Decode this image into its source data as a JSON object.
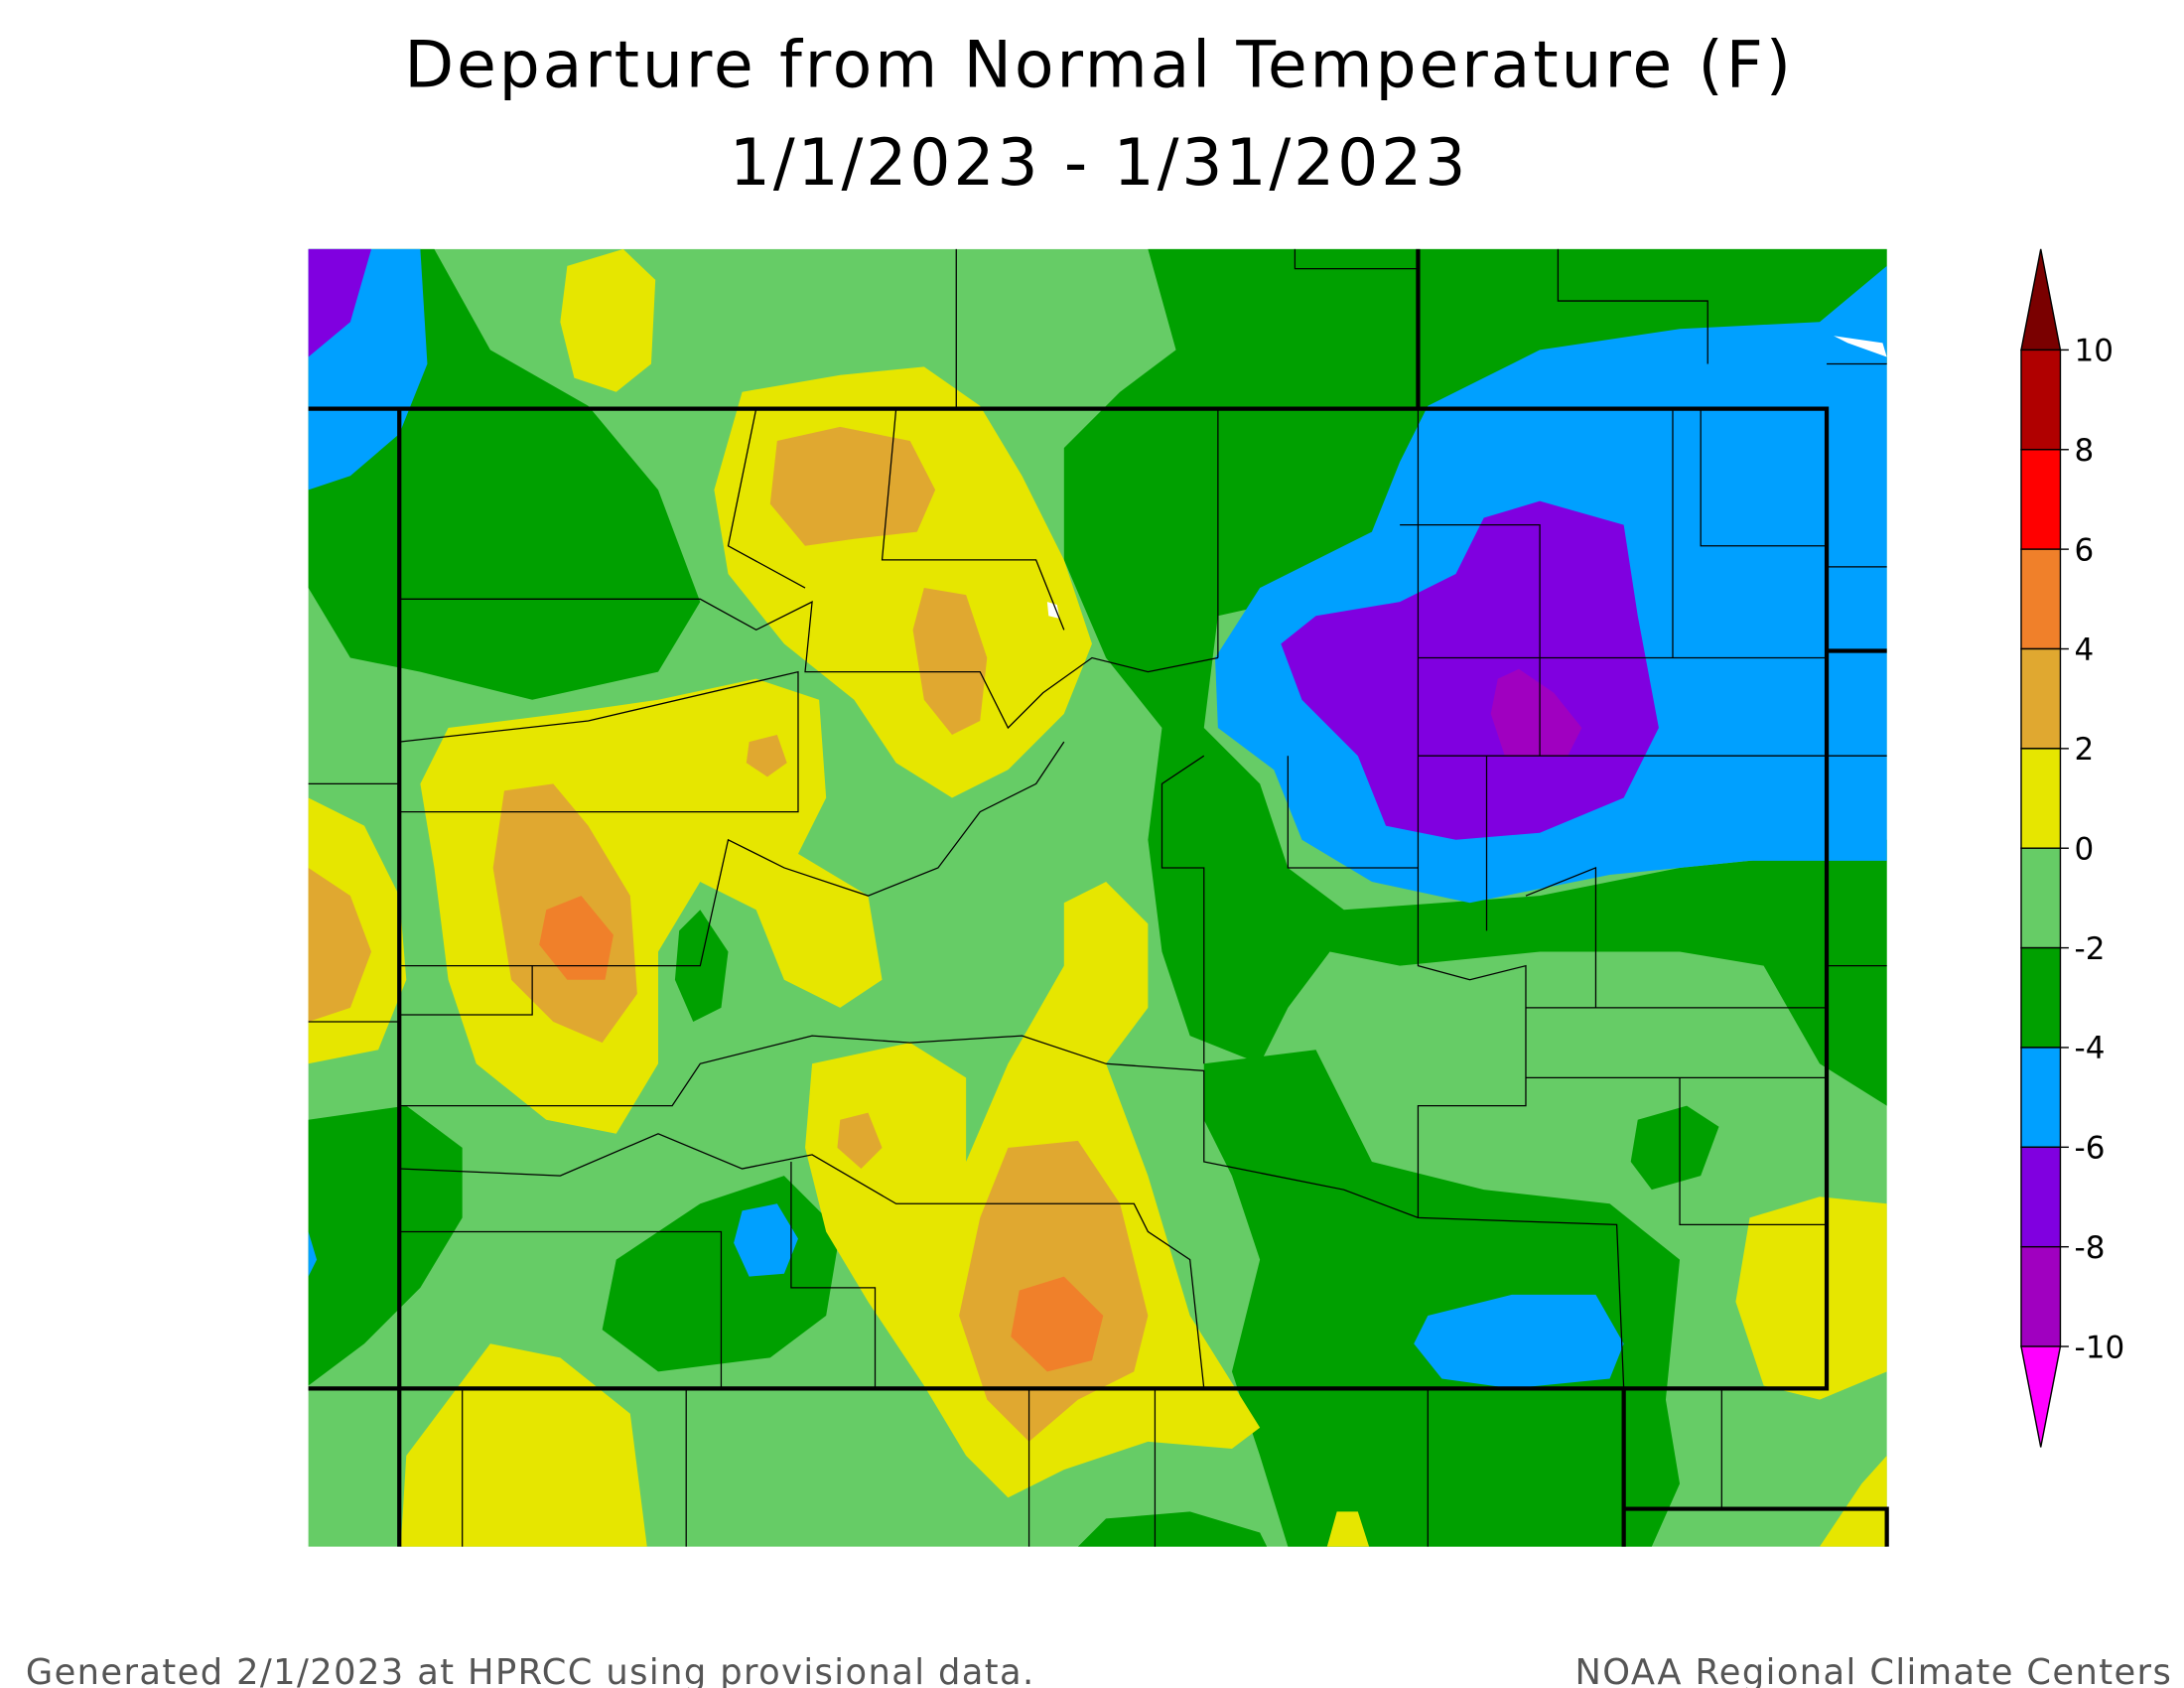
{
  "header": {
    "title": "Departure from Normal Temperature (F)",
    "subtitle": "1/1/2023 - 1/31/2023"
  },
  "legend": {
    "ticks": [
      10,
      8,
      6,
      4,
      2,
      0,
      -2,
      -4,
      -6,
      -8,
      -10
    ],
    "colors": [
      "#7a0000",
      "#b00000",
      "#ff0000",
      "#f0802a",
      "#e0a830",
      "#e6e600",
      "#66cc66",
      "#00a000",
      "#00a0ff",
      "#8000e0",
      "#a000c0",
      "#ff00ff"
    ]
  },
  "footer": {
    "left": "Generated 2/1/2023 at HPRCC using provisional data.",
    "right": "NOAA Regional Climate Centers"
  }
}
